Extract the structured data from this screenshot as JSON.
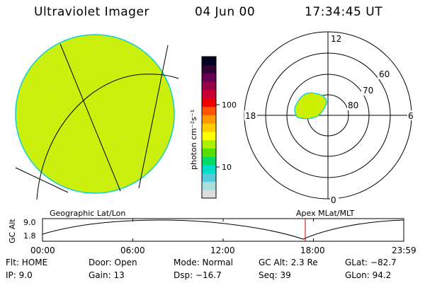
{
  "header": {
    "instrument": "Ultraviolet Imager",
    "date": "04 Jun 00",
    "time": "17:34:45 UT"
  },
  "colorbar": {
    "unit_label": "photon cm⁻²s⁻¹",
    "ticks": [
      "100",
      "10"
    ],
    "colors": [
      "#dddddd",
      "#aadddd",
      "#55ccdd",
      "#00ddcc",
      "#00dd66",
      "#55e000",
      "#aaf000",
      "#ffff00",
      "#ffcc00",
      "#ff9900",
      "#ff5500",
      "#ee0000",
      "#cc0033",
      "#990044",
      "#660055",
      "#330033",
      "#000022"
    ]
  },
  "polar_plot": {
    "mlt_labels": {
      "top": "12",
      "left": "18",
      "right": "6",
      "bottom": "0"
    },
    "lat_labels": [
      "60",
      "70",
      "80"
    ]
  },
  "timeline": {
    "left_label": "Geographic Lat/Lon",
    "right_label": "Apex MLat/MLT",
    "y_axis_label": "GC Alt",
    "y_ticks": [
      "9.0",
      "1.8"
    ],
    "x_ticks": [
      "00:00",
      "06:00",
      "12:00",
      "18:00",
      "23:59"
    ],
    "marker_color": "#cc0000"
  },
  "info": {
    "filter": "Flt: HOME",
    "ip": "IP:  9.0",
    "door": "Door: Open",
    "gain": "Gain: 13",
    "mode": "Mode: Normal",
    "dsp": "Dsp:  −16.7",
    "gc_alt": "GC Alt: 2.3 Re",
    "seq": "Seq: 39",
    "glat": "GLat: −82.7",
    "glon": "GLon:  94.2"
  },
  "colors": {
    "disk_fill": "#ccf000",
    "disk_edge": "#00ccdd"
  }
}
